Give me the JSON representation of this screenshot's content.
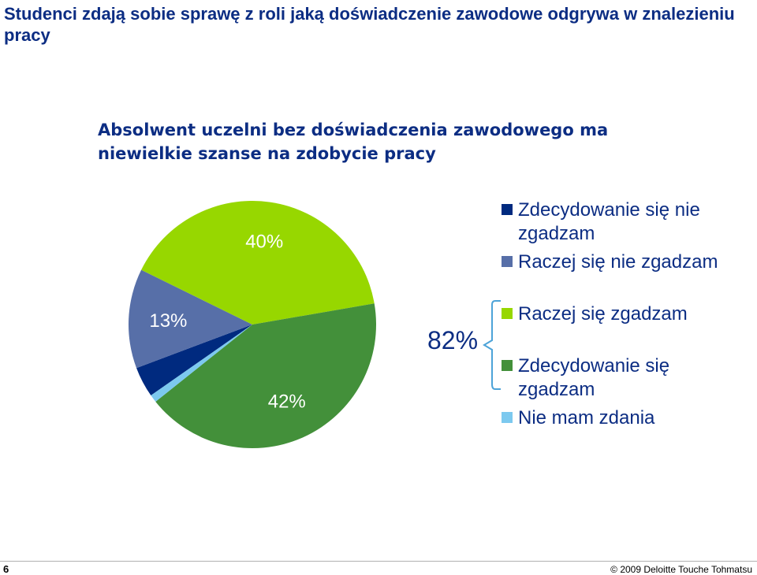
{
  "slide": {
    "title": "Studenci zdają sobie sprawę z roli jaką doświadczenie zawodowe odgrywa w znalezieniu pracy",
    "page_number": "6",
    "copyright": "© 2009 Deloitte Touche Tohmatsu"
  },
  "chart_data": {
    "type": "pie",
    "title": "Absolwent uczelni bez doświadczenia zawodowego ma niewielkie szanse na zdobycie pracy",
    "slices": [
      {
        "name": "Zdecydowanie się nie zgadzam",
        "value": 4,
        "label": "",
        "color": "#002a7f"
      },
      {
        "name": "Raczej się nie zgadzam",
        "value": 13,
        "label": "13%",
        "color": "#576fa8"
      },
      {
        "name": "Raczej się zgadzam",
        "value": 40,
        "label": "40%",
        "color": "#97d700"
      },
      {
        "name": "Zdecydowanie się zgadzam",
        "value": 42,
        "label": "42%",
        "color": "#43903a"
      },
      {
        "name": "Nie mam zdania",
        "value": 1,
        "label": "",
        "color": "#7cc9ef"
      }
    ],
    "legend_order": [
      0,
      1,
      2,
      3,
      4
    ],
    "legend_placement": "right",
    "summary": {
      "label": "82%",
      "brace_color": "#4da3d8"
    }
  }
}
